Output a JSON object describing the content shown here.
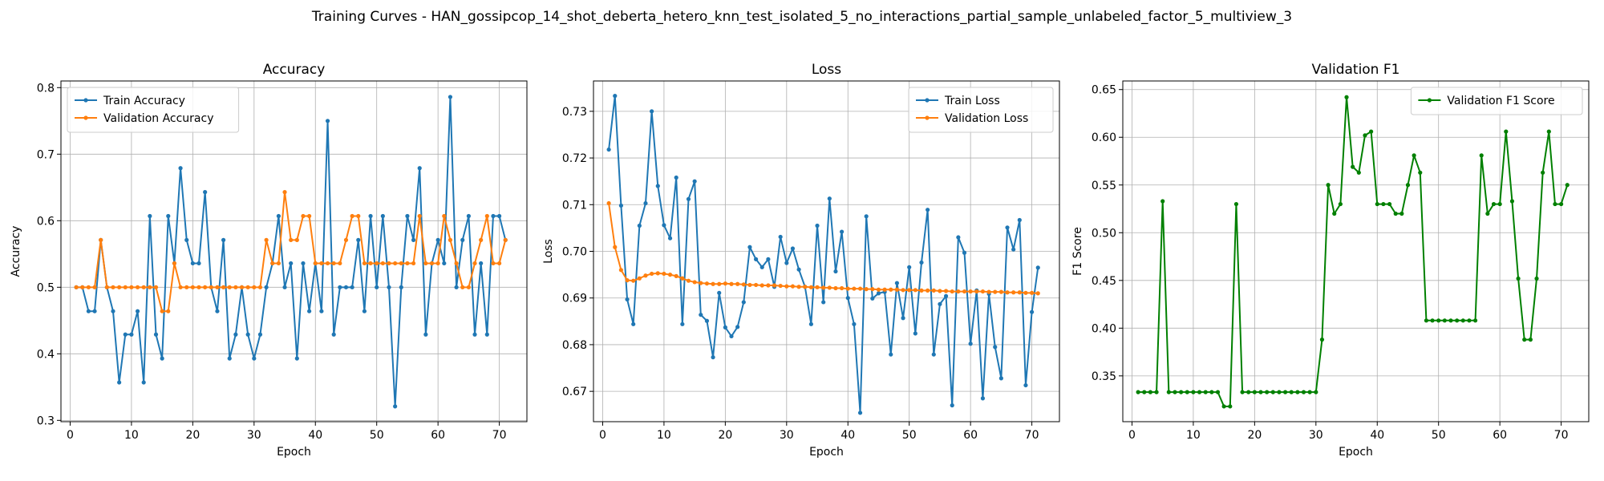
{
  "suptitle": "Training Curves - HAN_gossipcop_14_shot_deberta_hetero_knn_test_isolated_5_no_interactions_partial_sample_unlabeled_factor_5_multiview_3",
  "chart_data": [
    {
      "type": "line",
      "title": "Accuracy",
      "xlabel": "Epoch",
      "ylabel": "Accuracy",
      "xlim": [
        -1.5,
        74.5
      ],
      "ylim": [
        0.298,
        0.81
      ],
      "xticks": [
        0,
        10,
        20,
        30,
        40,
        50,
        60,
        70
      ],
      "yticks": [
        0.3,
        0.4,
        0.5,
        0.6,
        0.7,
        0.8
      ],
      "tick_decimals": 1,
      "grid": true,
      "legend_position": "upper-left",
      "x": [
        1,
        2,
        3,
        4,
        5,
        6,
        7,
        8,
        9,
        10,
        11,
        12,
        13,
        14,
        15,
        16,
        17,
        18,
        19,
        20,
        21,
        22,
        23,
        24,
        25,
        26,
        27,
        28,
        29,
        30,
        31,
        32,
        33,
        34,
        35,
        36,
        37,
        38,
        39,
        40,
        41,
        42,
        43,
        44,
        45,
        46,
        47,
        48,
        49,
        50,
        51,
        52,
        53,
        54,
        55,
        56,
        57,
        58,
        59,
        60,
        61,
        62,
        63,
        64,
        65,
        66,
        67,
        68,
        69,
        70,
        71
      ],
      "series": [
        {
          "name": "Train Accuracy",
          "color": "#1f77b4",
          "values": [
            0.5,
            0.5,
            0.464,
            0.464,
            0.571,
            0.5,
            0.464,
            0.357,
            0.429,
            0.429,
            0.464,
            0.357,
            0.607,
            0.429,
            0.393,
            0.607,
            0.536,
            0.679,
            0.571,
            0.536,
            0.536,
            0.643,
            0.5,
            0.464,
            0.571,
            0.393,
            0.429,
            0.5,
            0.429,
            0.393,
            0.429,
            0.5,
            0.536,
            0.607,
            0.5,
            0.536,
            0.393,
            0.536,
            0.464,
            0.536,
            0.464,
            0.75,
            0.429,
            0.5,
            0.5,
            0.5,
            0.571,
            0.464,
            0.607,
            0.5,
            0.607,
            0.5,
            0.321,
            0.5,
            0.607,
            0.571,
            0.679,
            0.429,
            0.536,
            0.571,
            0.536,
            0.786,
            0.5,
            0.571,
            0.607,
            0.429,
            0.536,
            0.429,
            0.607,
            0.607,
            0.571
          ]
        },
        {
          "name": "Validation Accuracy",
          "color": "#ff7f0e",
          "values": [
            0.5,
            0.5,
            0.5,
            0.5,
            0.571,
            0.5,
            0.5,
            0.5,
            0.5,
            0.5,
            0.5,
            0.5,
            0.5,
            0.5,
            0.464,
            0.464,
            0.536,
            0.5,
            0.5,
            0.5,
            0.5,
            0.5,
            0.5,
            0.5,
            0.5,
            0.5,
            0.5,
            0.5,
            0.5,
            0.5,
            0.5,
            0.571,
            0.536,
            0.536,
            0.643,
            0.571,
            0.571,
            0.607,
            0.607,
            0.536,
            0.536,
            0.536,
            0.536,
            0.536,
            0.571,
            0.607,
            0.607,
            0.536,
            0.536,
            0.536,
            0.536,
            0.536,
            0.536,
            0.536,
            0.536,
            0.536,
            0.607,
            0.536,
            0.536,
            0.536,
            0.607,
            0.571,
            0.536,
            0.5,
            0.5,
            0.536,
            0.571,
            0.607,
            0.536,
            0.536,
            0.571
          ]
        }
      ]
    },
    {
      "type": "line",
      "title": "Loss",
      "xlabel": "Epoch",
      "ylabel": "Loss",
      "xlim": [
        -1.5,
        74.5
      ],
      "ylim": [
        0.6635,
        0.7365
      ],
      "xticks": [
        0,
        10,
        20,
        30,
        40,
        50,
        60,
        70
      ],
      "yticks": [
        0.67,
        0.68,
        0.69,
        0.7,
        0.71,
        0.72,
        0.73
      ],
      "tick_decimals": 2,
      "grid": true,
      "legend_position": "upper-right",
      "x": [
        1,
        2,
        3,
        4,
        5,
        6,
        7,
        8,
        9,
        10,
        11,
        12,
        13,
        14,
        15,
        16,
        17,
        18,
        19,
        20,
        21,
        22,
        23,
        24,
        25,
        26,
        27,
        28,
        29,
        30,
        31,
        32,
        33,
        34,
        35,
        36,
        37,
        38,
        39,
        40,
        41,
        42,
        43,
        44,
        45,
        46,
        47,
        48,
        49,
        50,
        51,
        52,
        53,
        54,
        55,
        56,
        57,
        58,
        59,
        60,
        61,
        62,
        63,
        64,
        65,
        66,
        67,
        68,
        69,
        70,
        71
      ],
      "series": [
        {
          "name": "Train Loss",
          "color": "#1f77b4",
          "values": [
            0.7218,
            0.7333,
            0.7098,
            0.6897,
            0.6844,
            0.7055,
            0.7103,
            0.73,
            0.714,
            0.7056,
            0.7028,
            0.7158,
            0.6844,
            0.7112,
            0.715,
            0.6864,
            0.6851,
            0.6773,
            0.6911,
            0.6837,
            0.6818,
            0.6838,
            0.6891,
            0.7009,
            0.6983,
            0.6966,
            0.6983,
            0.6924,
            0.7031,
            0.6975,
            0.7006,
            0.6961,
            0.6924,
            0.6844,
            0.7055,
            0.6891,
            0.7113,
            0.6957,
            0.7042,
            0.69,
            0.6844,
            0.6654,
            0.7075,
            0.6899,
            0.691,
            0.6913,
            0.6779,
            0.6932,
            0.6857,
            0.6966,
            0.6824,
            0.6976,
            0.7089,
            0.6779,
            0.6887,
            0.6904,
            0.667,
            0.703,
            0.6997,
            0.6802,
            0.6916,
            0.6685,
            0.6909,
            0.6795,
            0.6728,
            0.7051,
            0.7004,
            0.7067,
            0.6713,
            0.687,
            0.6965
          ]
        },
        {
          "name": "Validation Loss",
          "color": "#ff7f0e",
          "values": [
            0.7103,
            0.7009,
            0.696,
            0.6938,
            0.6937,
            0.6942,
            0.6948,
            0.6952,
            0.6953,
            0.6952,
            0.695,
            0.6947,
            0.6942,
            0.6937,
            0.6934,
            0.6932,
            0.6931,
            0.693,
            0.693,
            0.6931,
            0.693,
            0.693,
            0.6929,
            0.6928,
            0.6928,
            0.6927,
            0.6927,
            0.6927,
            0.6926,
            0.6925,
            0.6925,
            0.6924,
            0.6924,
            0.6923,
            0.6923,
            0.6922,
            0.6922,
            0.6921,
            0.6921,
            0.692,
            0.692,
            0.692,
            0.6919,
            0.6919,
            0.6918,
            0.6918,
            0.6918,
            0.6918,
            0.6917,
            0.6917,
            0.6917,
            0.6916,
            0.6916,
            0.6916,
            0.6915,
            0.6915,
            0.6914,
            0.6914,
            0.6914,
            0.6914,
            0.6914,
            0.6914,
            0.6913,
            0.6913,
            0.6913,
            0.6912,
            0.6912,
            0.6912,
            0.6911,
            0.6911,
            0.691
          ]
        }
      ]
    },
    {
      "type": "line",
      "title": "Validation F1",
      "xlabel": "Epoch",
      "ylabel": "F1 Score",
      "xlim": [
        -1.5,
        74.5
      ],
      "ylim": [
        0.302,
        0.659
      ],
      "xticks": [
        0,
        10,
        20,
        30,
        40,
        50,
        60,
        70
      ],
      "yticks": [
        0.35,
        0.4,
        0.45,
        0.5,
        0.55,
        0.6,
        0.65
      ],
      "tick_decimals": 2,
      "grid": true,
      "legend_position": "upper-right",
      "x": [
        1,
        2,
        3,
        4,
        5,
        6,
        7,
        8,
        9,
        10,
        11,
        12,
        13,
        14,
        15,
        16,
        17,
        18,
        19,
        20,
        21,
        22,
        23,
        24,
        25,
        26,
        27,
        28,
        29,
        30,
        31,
        32,
        33,
        34,
        35,
        36,
        37,
        38,
        39,
        40,
        41,
        42,
        43,
        44,
        45,
        46,
        47,
        48,
        49,
        50,
        51,
        52,
        53,
        54,
        55,
        56,
        57,
        58,
        59,
        60,
        61,
        62,
        63,
        64,
        65,
        66,
        67,
        68,
        69,
        70,
        71
      ],
      "series": [
        {
          "name": "Validation F1 Score",
          "color": "#008000",
          "values": [
            0.333,
            0.333,
            0.333,
            0.333,
            0.533,
            0.333,
            0.333,
            0.333,
            0.333,
            0.333,
            0.333,
            0.333,
            0.333,
            0.333,
            0.318,
            0.318,
            0.53,
            0.333,
            0.333,
            0.333,
            0.333,
            0.333,
            0.333,
            0.333,
            0.333,
            0.333,
            0.333,
            0.333,
            0.333,
            0.333,
            0.388,
            0.55,
            0.52,
            0.53,
            0.642,
            0.569,
            0.563,
            0.602,
            0.606,
            0.53,
            0.53,
            0.53,
            0.52,
            0.52,
            0.55,
            0.581,
            0.563,
            0.408,
            0.408,
            0.408,
            0.408,
            0.408,
            0.408,
            0.408,
            0.408,
            0.408,
            0.581,
            0.52,
            0.53,
            0.53,
            0.606,
            0.533,
            0.452,
            0.388,
            0.388,
            0.452,
            0.563,
            0.606,
            0.53,
            0.53,
            0.55
          ]
        }
      ]
    }
  ]
}
